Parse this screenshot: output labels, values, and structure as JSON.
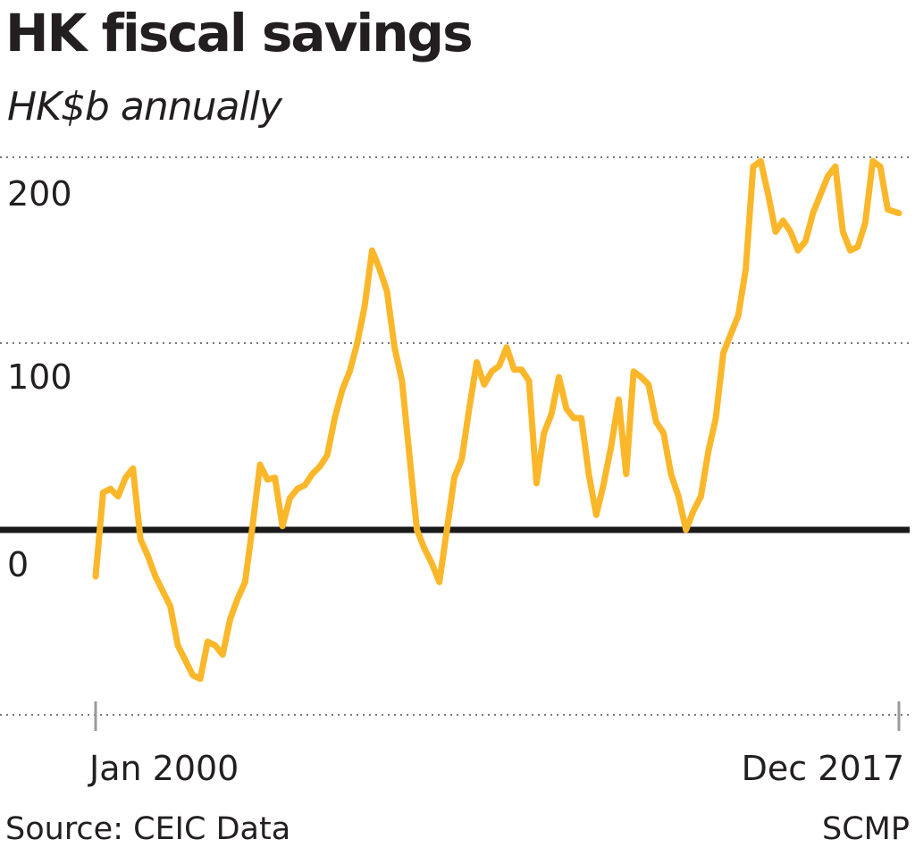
{
  "header": {
    "title": "HK fiscal savings",
    "subtitle": "HK$b annually"
  },
  "footer": {
    "source": "Source: CEIC Data",
    "credit": "SCMP"
  },
  "colors": {
    "line": "#fbb72a",
    "zero_line": "#1a1a1a",
    "grid": "#7a7a7a",
    "text": "#231f20"
  },
  "chart_data": {
    "type": "line",
    "title": "HK fiscal savings",
    "subtitle": "HK$b annually",
    "ylim": [
      -100,
      200
    ],
    "yticks": [
      0,
      100,
      200
    ],
    "ytick_labels": [
      "0",
      "100",
      "200"
    ],
    "xlabels": [
      "Jan 2000",
      "Dec 2017"
    ],
    "grid": true,
    "series": [
      {
        "x": [
          "2000-01",
          "2000-03",
          "2000-05",
          "2000-07",
          "2000-09",
          "2000-11",
          "2001-01",
          "2001-03",
          "2001-05",
          "2001-07",
          "2001-09",
          "2001-11",
          "2002-01",
          "2002-03",
          "2002-05",
          "2002-07",
          "2002-09",
          "2002-11",
          "2003-01",
          "2003-03",
          "2003-05",
          "2003-07",
          "2003-09",
          "2003-11",
          "2004-01",
          "2004-03",
          "2004-05",
          "2004-07",
          "2004-09",
          "2004-11",
          "2005-01",
          "2005-03",
          "2005-05",
          "2005-07",
          "2005-09",
          "2005-11",
          "2006-01",
          "2006-03",
          "2006-05",
          "2006-07",
          "2006-09",
          "2006-11",
          "2007-01",
          "2007-03",
          "2007-05",
          "2007-07",
          "2007-09",
          "2007-11",
          "2008-01",
          "2008-03",
          "2008-05",
          "2008-07",
          "2008-09",
          "2008-11",
          "2009-01",
          "2009-03",
          "2009-05",
          "2009-07",
          "2009-09",
          "2009-11",
          "2010-01",
          "2010-03",
          "2010-05",
          "2010-07",
          "2010-09",
          "2010-11",
          "2011-01",
          "2011-03",
          "2011-05",
          "2011-07",
          "2011-09",
          "2011-11",
          "2012-01",
          "2012-03",
          "2012-05",
          "2012-07",
          "2012-09",
          "2012-11",
          "2013-01",
          "2013-03",
          "2013-05",
          "2013-07",
          "2013-09",
          "2013-11",
          "2014-01",
          "2014-03",
          "2014-05",
          "2014-07",
          "2014-09",
          "2014-11",
          "2015-01",
          "2015-03",
          "2015-05",
          "2015-07",
          "2015-09",
          "2015-11",
          "2016-01",
          "2016-03",
          "2016-05",
          "2016-07",
          "2016-09",
          "2016-11",
          "2017-01",
          "2017-03",
          "2017-05",
          "2017-07",
          "2017-09",
          "2017-12"
        ],
        "values": [
          -25,
          20,
          22,
          18,
          28,
          33,
          -5,
          -14,
          -25,
          -33,
          -41,
          -62,
          -70,
          -78,
          -80,
          -60,
          -62,
          -67,
          -48,
          -37,
          -28,
          2,
          35,
          27,
          28,
          2,
          17,
          22,
          24,
          30,
          34,
          40,
          60,
          75,
          85,
          100,
          120,
          150,
          140,
          128,
          98,
          80,
          40,
          0,
          -10,
          -18,
          -28,
          0,
          28,
          38,
          65,
          90,
          78,
          85,
          88,
          98,
          86,
          86,
          80,
          25,
          52,
          62,
          82,
          65,
          60,
          60,
          30,
          8,
          25,
          45,
          70,
          30,
          85,
          82,
          78,
          58,
          52,
          30,
          18,
          0,
          10,
          18,
          42,
          60,
          95,
          105,
          115,
          140,
          195,
          198,
          180,
          160,
          166,
          160,
          150,
          155,
          170,
          180,
          190,
          195,
          160,
          150,
          152,
          165,
          198,
          195,
          172,
          170
        ]
      }
    ]
  }
}
